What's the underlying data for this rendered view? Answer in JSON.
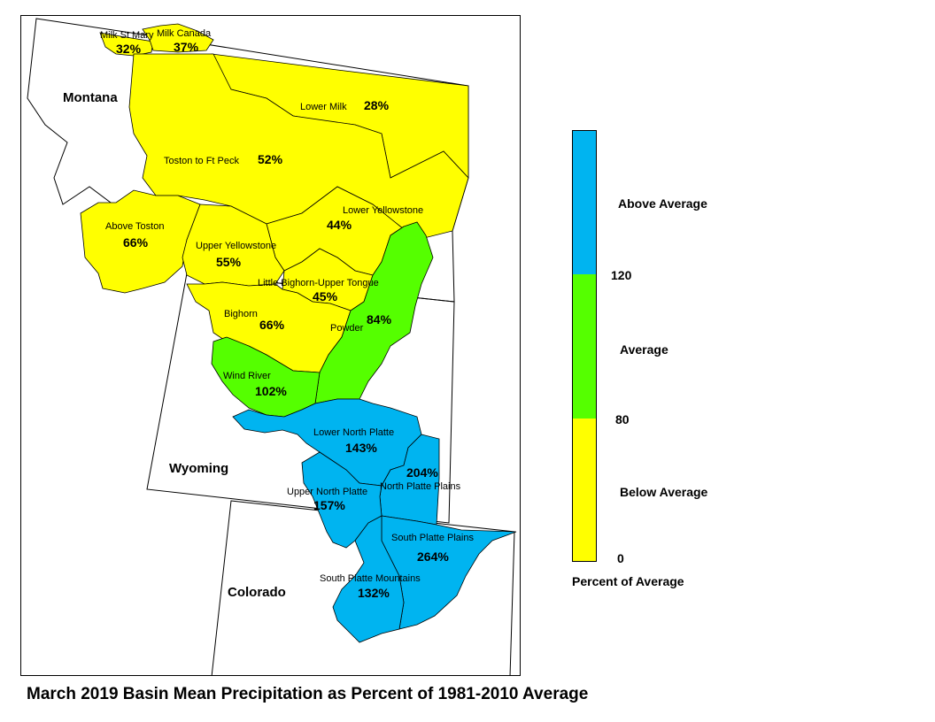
{
  "title": "March 2019 Basin Mean Precipitation as Percent of 1981-2010 Average",
  "legend": {
    "title": "Percent of Average",
    "classes": [
      {
        "label": "Above Average",
        "color": "#00b4f0"
      },
      {
        "label": "Average",
        "color": "#55ff00"
      },
      {
        "label": "Below Average",
        "color": "#ffff00"
      }
    ],
    "breaks": [
      "120",
      "80",
      "0"
    ]
  },
  "states": [
    "Montana",
    "Wyoming",
    "Colorado"
  ],
  "basins": [
    {
      "name": "Milk St Mary",
      "value": "32%",
      "class": "below"
    },
    {
      "name": "Milk Canada",
      "value": "37%",
      "class": "below"
    },
    {
      "name": "Lower Milk",
      "value": "28%",
      "class": "below"
    },
    {
      "name": "Toston to Ft Peck",
      "value": "52%",
      "class": "below"
    },
    {
      "name": "Above Toston",
      "value": "66%",
      "class": "below"
    },
    {
      "name": "Lower Yellowstone",
      "value": "44%",
      "class": "below"
    },
    {
      "name": "Upper Yellowstone",
      "value": "55%",
      "class": "below"
    },
    {
      "name": "Little Bighorn-Upper Tongue",
      "value": "45%",
      "class": "below"
    },
    {
      "name": "Bighorn",
      "value": "66%",
      "class": "below"
    },
    {
      "name": "Powder",
      "value": "84%",
      "class": "average"
    },
    {
      "name": "Wind River",
      "value": "102%",
      "class": "average"
    },
    {
      "name": "Lower North Platte",
      "value": "143%",
      "class": "above"
    },
    {
      "name": "North Platte Plains",
      "value": "204%",
      "class": "above"
    },
    {
      "name": "Upper North Platte",
      "value": "157%",
      "class": "above"
    },
    {
      "name": "South Platte Plains",
      "value": "264%",
      "class": "above"
    },
    {
      "name": "South Platte Mountains",
      "value": "132%",
      "class": "above"
    }
  ]
}
